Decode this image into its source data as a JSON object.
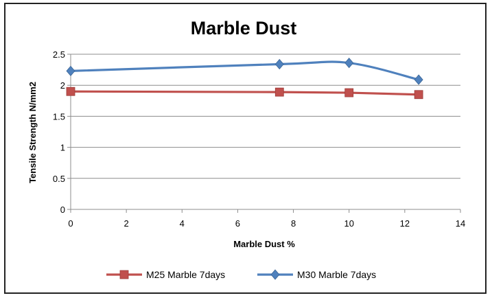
{
  "chart_data": {
    "type": "line",
    "title": "Marble Dust",
    "xlabel": "Marble Dust %",
    "ylabel": "Tensile Strength N/mm2",
    "xlim": [
      0,
      14
    ],
    "ylim": [
      0,
      2.5
    ],
    "x_ticks": [
      0,
      2,
      4,
      6,
      8,
      10,
      12,
      14
    ],
    "y_ticks": [
      0,
      0.5,
      1,
      1.5,
      2,
      2.5
    ],
    "y_tick_labels": [
      "0",
      "0.5",
      "1",
      "1.5",
      "2",
      "2.5"
    ],
    "grid": "horizontal",
    "legend_position": "bottom",
    "series": [
      {
        "name": "M25 Marble 7days",
        "color": "#C0504D",
        "marker": "square",
        "x": [
          0,
          7.5,
          10,
          12.5
        ],
        "y": [
          1.9,
          1.89,
          1.88,
          1.85
        ]
      },
      {
        "name": "M30 Marble 7days",
        "color": "#4F81BD",
        "marker": "diamond",
        "x": [
          0,
          7.5,
          10,
          12.5
        ],
        "y": [
          2.23,
          2.34,
          2.36,
          2.09
        ]
      }
    ]
  }
}
